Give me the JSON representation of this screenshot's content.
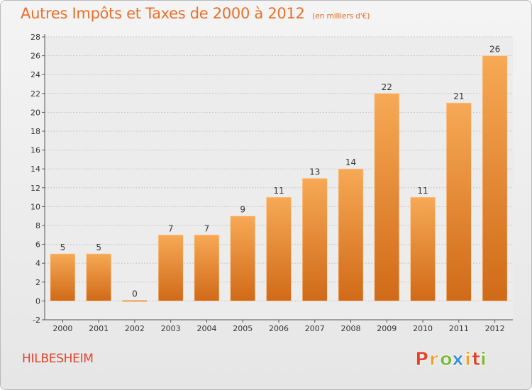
{
  "title": "Autres Impôts et Taxes de 2000 à 2012",
  "subtitle": "(en milliers d'€)",
  "commune": "HILBESHEIM",
  "logo": {
    "letters": [
      "P",
      "r",
      "o",
      "x",
      "i",
      "t",
      "i"
    ],
    "colors": [
      "#e0442c",
      "#f2a12e",
      "#7cb83a",
      "#3d8fd1",
      "#f2a12e",
      "#e0442c",
      "#7cb83a"
    ]
  },
  "colors": {
    "bar": "#ef8c30",
    "bar_light": "#f7a955",
    "bar_dark": "#d06a18",
    "accent": "#e8702a"
  },
  "chart_data": {
    "type": "bar",
    "categories": [
      "2000",
      "2001",
      "2002",
      "2003",
      "2004",
      "2005",
      "2006",
      "2007",
      "2008",
      "2009",
      "2010",
      "2011",
      "2012"
    ],
    "values": [
      5,
      5,
      0,
      7,
      7,
      9,
      11,
      13,
      14,
      22,
      11,
      21,
      26
    ],
    "title": "Autres Impôts et Taxes de 2000 à 2012",
    "subtitle": "(en milliers d'€)",
    "xlabel": "",
    "ylabel": "",
    "ylim": [
      -2,
      28
    ],
    "yticks": [
      -2,
      0,
      2,
      4,
      6,
      8,
      10,
      12,
      14,
      16,
      18,
      20,
      22,
      24,
      26,
      28
    ],
    "grid": true,
    "data_labels": true
  }
}
